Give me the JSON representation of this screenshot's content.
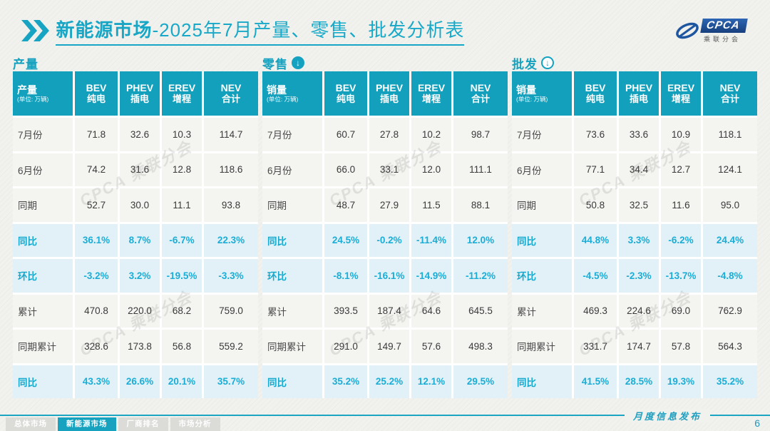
{
  "title": {
    "highlight": "新能源市场",
    "rest": "-2025年7月产量、零售、批发分析表"
  },
  "logo": {
    "brand": "CPCA",
    "subtitle": "乘联分会",
    "watermark": "CPCA 乘联分会"
  },
  "columns": [
    {
      "en": "BEV",
      "zh": "纯电"
    },
    {
      "en": "PHEV",
      "zh": "插电"
    },
    {
      "en": "EREV",
      "zh": "增程"
    },
    {
      "en": "NEV",
      "zh": "合计"
    }
  ],
  "tables": [
    {
      "section_label": "产量",
      "arrow": "none",
      "header_label": "产量",
      "unit": "(单位: 万辆)",
      "rows": [
        {
          "label": "7月份",
          "type": "normal",
          "values": [
            "71.8",
            "32.6",
            "10.3",
            "114.7"
          ]
        },
        {
          "label": "6月份",
          "type": "normal",
          "values": [
            "74.2",
            "31.6",
            "12.8",
            "118.6"
          ]
        },
        {
          "label": "同期",
          "type": "normal",
          "values": [
            "52.7",
            "30.0",
            "11.1",
            "93.8"
          ]
        },
        {
          "label": "同比",
          "type": "pct",
          "values": [
            "36.1%",
            "8.7%",
            "-6.7%",
            "22.3%"
          ]
        },
        {
          "label": "环比",
          "type": "pct",
          "values": [
            "-3.2%",
            "3.2%",
            "-19.5%",
            "-3.3%"
          ]
        },
        {
          "label": "累计",
          "type": "normal",
          "values": [
            "470.8",
            "220.0",
            "68.2",
            "759.0"
          ]
        },
        {
          "label": "同期累计",
          "type": "normal",
          "values": [
            "328.6",
            "173.8",
            "56.8",
            "559.2"
          ]
        },
        {
          "label": "同比",
          "type": "pct",
          "values": [
            "43.3%",
            "26.6%",
            "20.1%",
            "35.7%"
          ]
        }
      ]
    },
    {
      "section_label": "零售",
      "arrow": "filled",
      "header_label": "销量",
      "unit": "(单位: 万辆)",
      "rows": [
        {
          "label": "7月份",
          "type": "normal",
          "values": [
            "60.7",
            "27.8",
            "10.2",
            "98.7"
          ]
        },
        {
          "label": "6月份",
          "type": "normal",
          "values": [
            "66.0",
            "33.1",
            "12.0",
            "111.1"
          ]
        },
        {
          "label": "同期",
          "type": "normal",
          "values": [
            "48.7",
            "27.9",
            "11.5",
            "88.1"
          ]
        },
        {
          "label": "同比",
          "type": "pct",
          "values": [
            "24.5%",
            "-0.2%",
            "-11.4%",
            "12.0%"
          ]
        },
        {
          "label": "环比",
          "type": "pct",
          "values": [
            "-8.1%",
            "-16.1%",
            "-14.9%",
            "-11.2%"
          ]
        },
        {
          "label": "累计",
          "type": "normal",
          "values": [
            "393.5",
            "187.4",
            "64.6",
            "645.5"
          ]
        },
        {
          "label": "同期累计",
          "type": "normal",
          "values": [
            "291.0",
            "149.7",
            "57.6",
            "498.3"
          ]
        },
        {
          "label": "同比",
          "type": "pct",
          "values": [
            "35.2%",
            "25.2%",
            "12.1%",
            "29.5%"
          ]
        }
      ]
    },
    {
      "section_label": "批发",
      "arrow": "outline",
      "header_label": "销量",
      "unit": "(单位: 万辆)",
      "rows": [
        {
          "label": "7月份",
          "type": "normal",
          "values": [
            "73.6",
            "33.6",
            "10.9",
            "118.1"
          ]
        },
        {
          "label": "6月份",
          "type": "normal",
          "values": [
            "77.1",
            "34.4",
            "12.7",
            "124.1"
          ]
        },
        {
          "label": "同期",
          "type": "normal",
          "values": [
            "50.8",
            "32.5",
            "11.6",
            "95.0"
          ]
        },
        {
          "label": "同比",
          "type": "pct",
          "values": [
            "44.8%",
            "3.3%",
            "-6.2%",
            "24.4%"
          ]
        },
        {
          "label": "环比",
          "type": "pct",
          "values": [
            "-4.5%",
            "-2.3%",
            "-13.7%",
            "-4.8%"
          ]
        },
        {
          "label": "累计",
          "type": "normal",
          "values": [
            "469.3",
            "224.6",
            "69.0",
            "762.9"
          ]
        },
        {
          "label": "同期累计",
          "type": "normal",
          "values": [
            "331.7",
            "174.7",
            "57.8",
            "564.3"
          ]
        },
        {
          "label": "同比",
          "type": "pct",
          "values": [
            "41.5%",
            "28.5%",
            "19.3%",
            "35.2%"
          ]
        }
      ]
    }
  ],
  "footer": {
    "tabs": [
      {
        "label": "总体市场",
        "active": false
      },
      {
        "label": "新能源市场",
        "active": true
      },
      {
        "label": "厂商排名",
        "active": false
      },
      {
        "label": "市场分析",
        "active": false
      }
    ],
    "caption": "月度信息发布",
    "page_number": "6"
  },
  "colors": {
    "primary_teal": "#12a0bc",
    "title_teal": "#17a6c5",
    "pct_text": "#1badd6",
    "pct_row_bg": "#e1f1f7",
    "row_bg": "#f4f4f1",
    "tab_inactive": "#dbdbd8",
    "logo_blue": "#1e56a0"
  }
}
